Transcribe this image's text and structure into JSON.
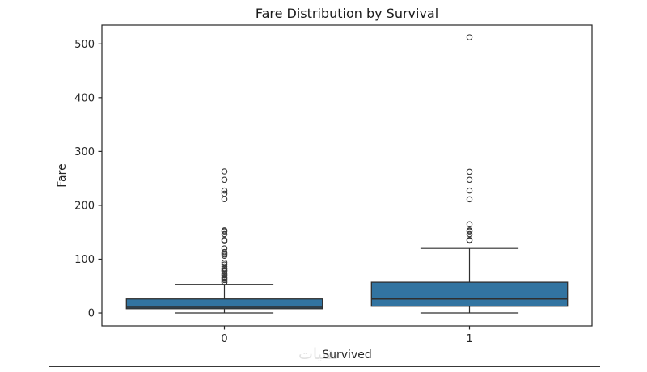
{
  "figure": {
    "title": "Fare Distribution by Survival",
    "xlabel": "Survived",
    "ylabel": "Fare",
    "watermark": "تقنيات"
  },
  "chart_data": {
    "type": "boxplot",
    "title": "Fare Distribution by Survival",
    "xlabel": "Survived",
    "ylabel": "Fare",
    "categories": [
      "0",
      "1"
    ],
    "yticks": [
      0,
      100,
      200,
      300,
      400,
      500
    ],
    "ylim": [
      -24,
      535
    ],
    "grid": false,
    "legend": null,
    "box_width_frac": 0.8,
    "cap_width_frac": 0.4,
    "box_fill_color": "#3274a1",
    "line_color": "#2f2f2f",
    "outlier_color": "#3a3a3a",
    "axes_color": "#262626",
    "text_color": "#262626",
    "boxes": [
      {
        "category": "0",
        "whislo": 0,
        "q1": 7.9,
        "med": 10.5,
        "q3": 26.0,
        "whishi": 53.1,
        "outliers": [
          56.5,
          57.75,
          61.18,
          63.36,
          65.0,
          66.6,
          69.55,
          71.0,
          73.5,
          77.29,
          78.85,
          79.2,
          82.17,
          83.16,
          86.5,
          90.0,
          93.5,
          106.43,
          108.9,
          110.88,
          113.28,
          120.0,
          133.65,
          135.63,
          146.52,
          151.55,
          153.46,
          211.5,
          221.78,
          227.53,
          247.52,
          263.0
        ]
      },
      {
        "category": "1",
        "whislo": 0,
        "q1": 12.47,
        "med": 26.0,
        "q3": 57.0,
        "whishi": 120.0,
        "outliers": [
          134.5,
          135.63,
          146.52,
          151.55,
          153.46,
          164.87,
          211.34,
          227.53,
          247.52,
          262.38,
          512.33
        ]
      }
    ]
  }
}
